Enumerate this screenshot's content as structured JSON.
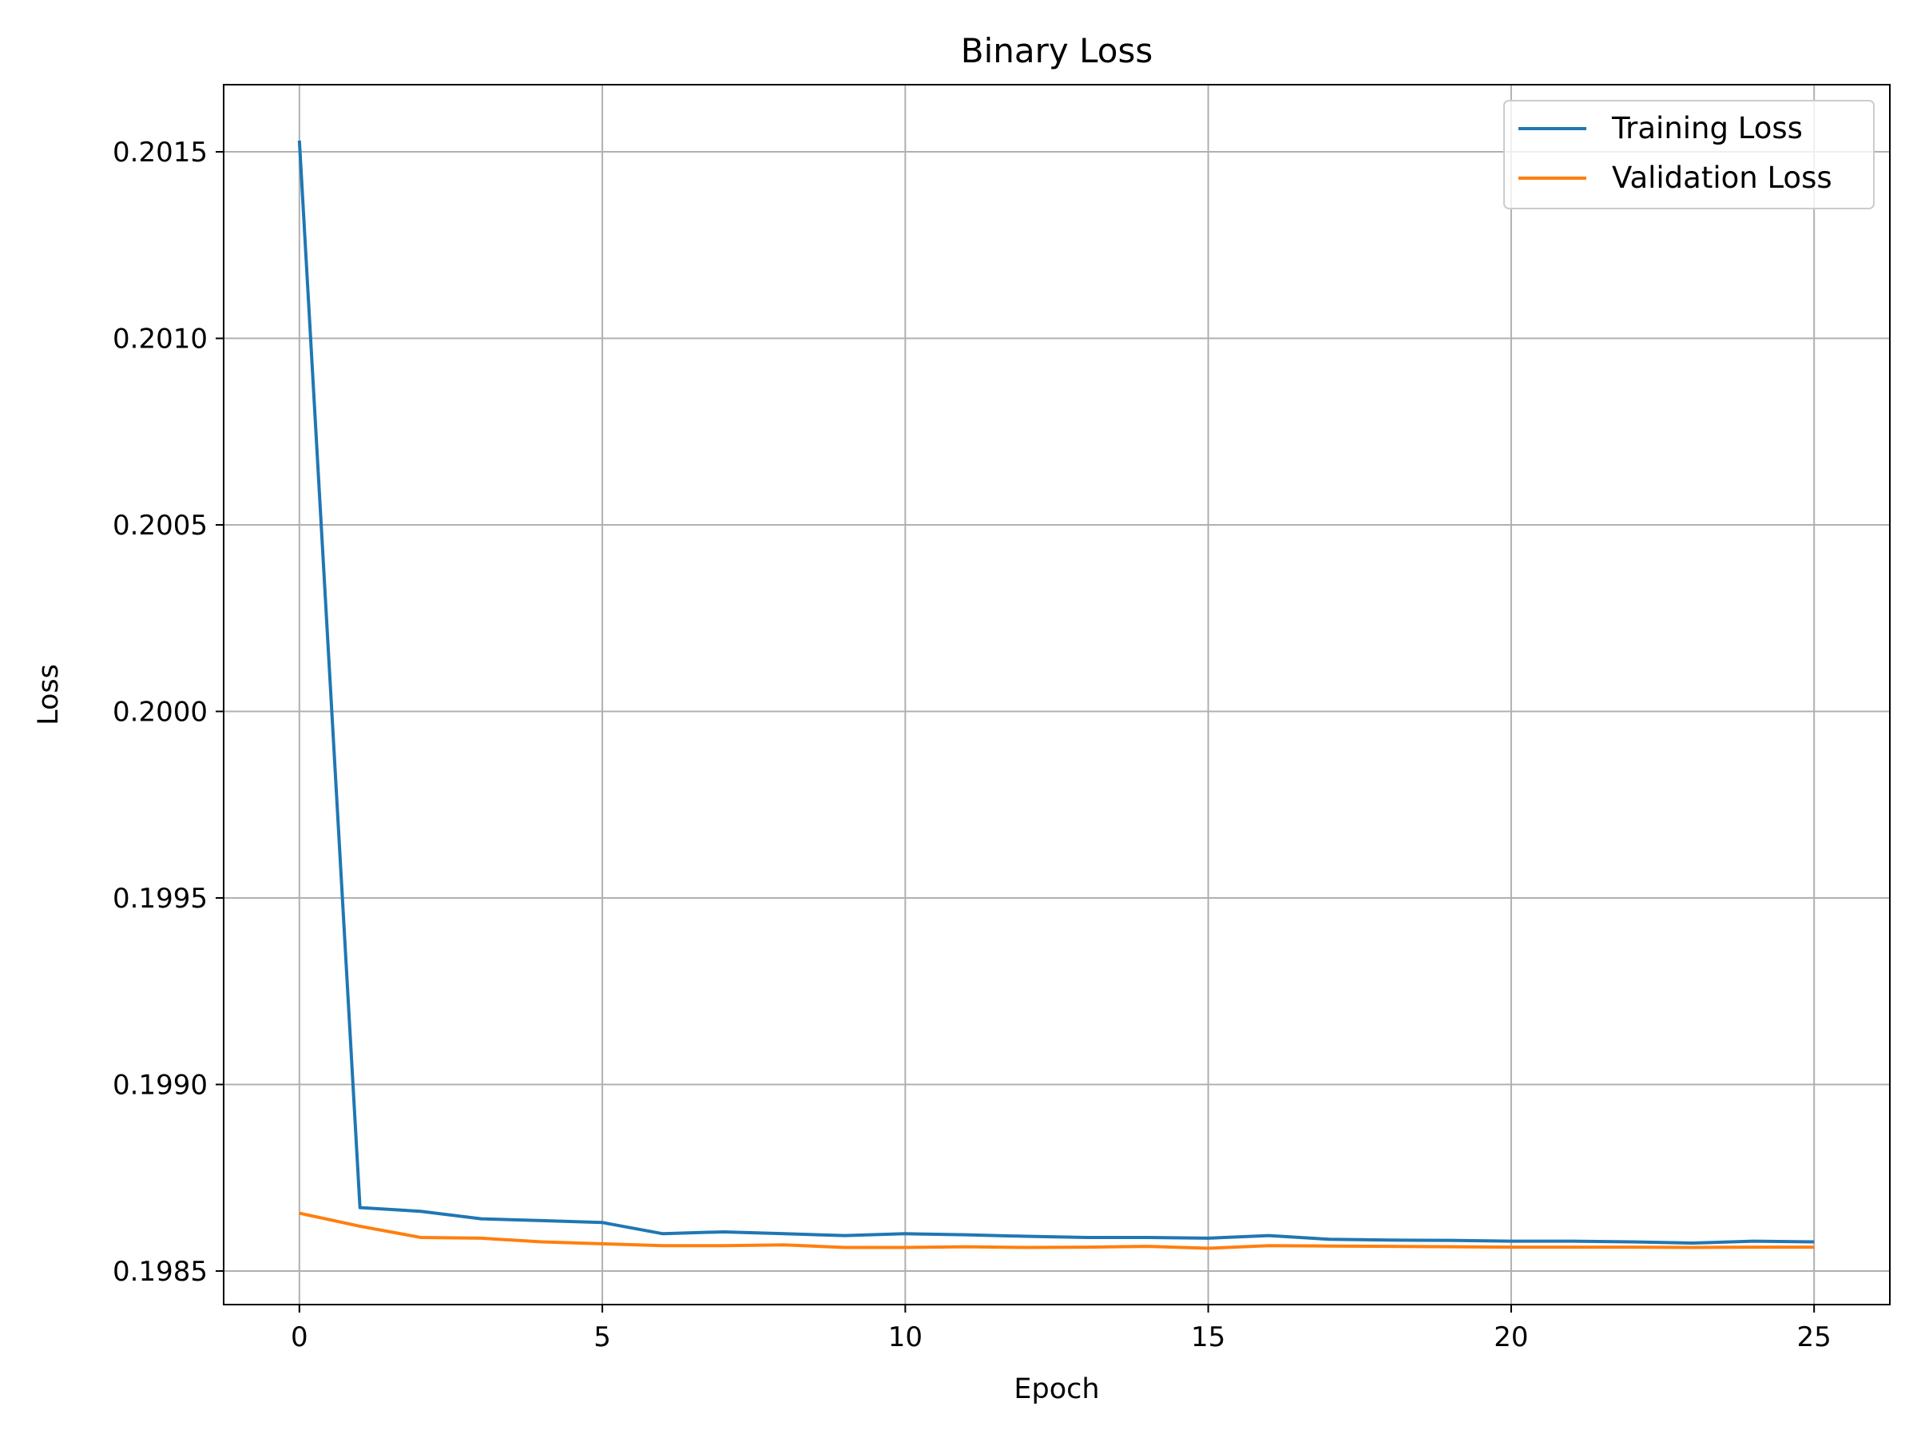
{
  "chart_data": {
    "type": "line",
    "title": "Binary Loss",
    "xlabel": "Epoch",
    "ylabel": "Loss",
    "xlim": [
      -1.25,
      26.25
    ],
    "ylim": [
      0.19841,
      0.20168
    ],
    "x_ticks": [
      0,
      5,
      10,
      15,
      20,
      25
    ],
    "y_ticks": [
      0.1985,
      0.199,
      0.1995,
      0.2,
      0.2005,
      0.201,
      0.2015
    ],
    "y_tick_labels": [
      "0.1985",
      "0.1990",
      "0.1995",
      "0.2000",
      "0.2005",
      "0.2010",
      "0.2015"
    ],
    "grid": true,
    "legend_position": "top-right",
    "x": [
      0,
      1,
      2,
      3,
      4,
      5,
      6,
      7,
      8,
      9,
      10,
      11,
      12,
      13,
      14,
      15,
      16,
      17,
      18,
      19,
      20,
      21,
      22,
      23,
      24,
      25
    ],
    "series": [
      {
        "name": "Training Loss",
        "color": "#1f77b4",
        "values": [
          0.20153,
          0.19867,
          0.19866,
          0.19864,
          0.198635,
          0.19863,
          0.1986,
          0.198605,
          0.1986,
          0.198595,
          0.1986,
          0.198597,
          0.198593,
          0.19859,
          0.19859,
          0.198588,
          0.198595,
          0.198585,
          0.198583,
          0.198582,
          0.19858,
          0.19858,
          0.198578,
          0.198575,
          0.19858,
          0.198578
        ]
      },
      {
        "name": "Validation Loss",
        "color": "#ff7f0e",
        "values": [
          0.198655,
          0.19862,
          0.19859,
          0.198588,
          0.198578,
          0.198573,
          0.198568,
          0.198568,
          0.19857,
          0.198563,
          0.198563,
          0.198565,
          0.198563,
          0.198564,
          0.198566,
          0.198561,
          0.198568,
          0.198567,
          0.198566,
          0.198565,
          0.198564,
          0.198564,
          0.198564,
          0.198563,
          0.198564,
          0.198564
        ]
      }
    ]
  }
}
